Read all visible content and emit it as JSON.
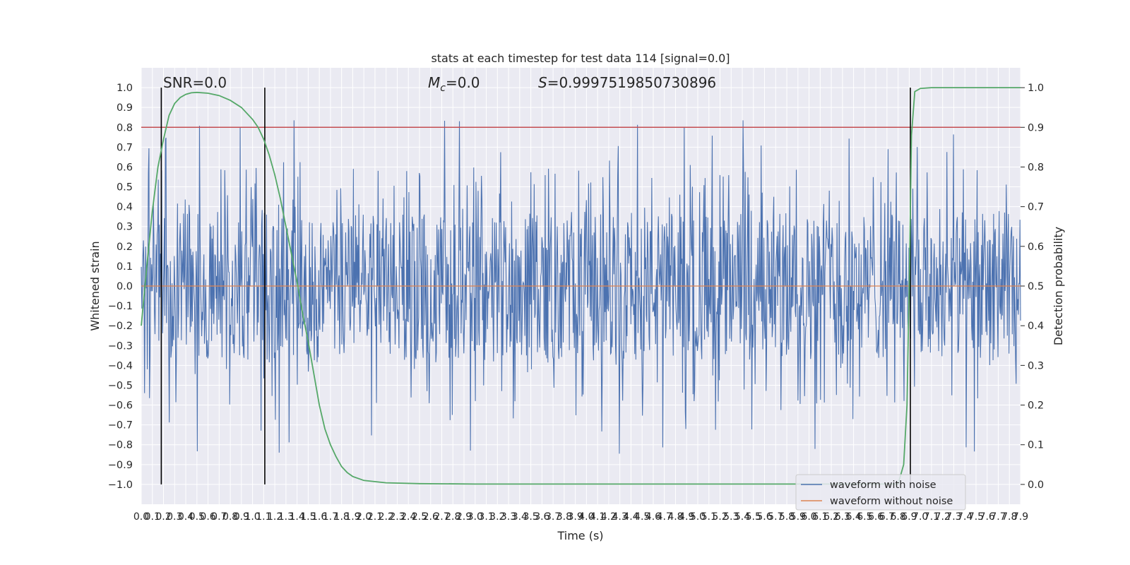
{
  "chart_data": {
    "type": "line",
    "title": "stats at each timestep for test data 114 [signal=0.0]",
    "xlabel": "Time (s)",
    "ylabel_left": "Whitened strain",
    "ylabel_right": "Detection probability",
    "xlim": [
      0.0,
      7.9
    ],
    "ylim_left": [
      -1.1,
      1.1
    ],
    "ylim_right": [
      -0.05,
      1.05
    ],
    "x_tick_step": 0.1,
    "y_left_ticks": [
      -1.0,
      -0.9,
      -0.8,
      -0.7,
      -0.6,
      -0.5,
      -0.4,
      -0.3,
      -0.2,
      -0.1,
      0.0,
      0.1,
      0.2,
      0.3,
      0.4,
      0.5,
      0.6,
      0.7,
      0.8,
      0.9,
      1.0
    ],
    "y_right_ticks": [
      0.0,
      0.1,
      0.2,
      0.3,
      0.4,
      0.5,
      0.6,
      0.7,
      0.8,
      0.9,
      1.0
    ],
    "grid": true,
    "legend_position": "lower-right",
    "annotations": {
      "snr": "SNR=0.0",
      "mc": "=0.0",
      "mc_symbol": "M",
      "mc_subscript": "c",
      "s": "=0.9997519850730896",
      "s_symbol": "S"
    },
    "threshold_line": {
      "y": 0.8,
      "color": "#c44e52"
    },
    "vertical_lines": [
      0.18,
      1.11,
      6.91
    ],
    "series": [
      {
        "name": "waveform with noise",
        "color": "#4c72b0",
        "axis": "left",
        "style": "dense noise, mostly within ±0.4 with spikes to ±1.0"
      },
      {
        "name": "waveform without noise",
        "color": "#dd8452",
        "axis": "left",
        "values": "flat at 0.0"
      },
      {
        "name": "",
        "color": "#55a868",
        "axis": "right",
        "x": [
          0.0,
          0.05,
          0.1,
          0.15,
          0.2,
          0.25,
          0.3,
          0.35,
          0.4,
          0.45,
          0.5,
          0.6,
          0.7,
          0.8,
          0.9,
          1.0,
          1.05,
          1.1,
          1.15,
          1.2,
          1.25,
          1.3,
          1.35,
          1.4,
          1.45,
          1.5,
          1.55,
          1.6,
          1.65,
          1.7,
          1.75,
          1.8,
          1.85,
          1.9,
          2.0,
          2.2,
          2.5,
          3.0,
          4.0,
          5.0,
          6.0,
          6.5,
          6.8,
          6.85,
          6.88,
          6.9,
          6.92,
          6.95,
          7.0,
          7.1,
          7.5,
          7.9
        ],
        "values": [
          0.4,
          0.55,
          0.69,
          0.8,
          0.87,
          0.93,
          0.96,
          0.975,
          0.983,
          0.987,
          0.988,
          0.986,
          0.98,
          0.968,
          0.95,
          0.92,
          0.9,
          0.87,
          0.83,
          0.78,
          0.72,
          0.65,
          0.58,
          0.51,
          0.43,
          0.36,
          0.28,
          0.2,
          0.14,
          0.1,
          0.07,
          0.045,
          0.03,
          0.02,
          0.01,
          0.004,
          0.002,
          0.001,
          0.001,
          0.001,
          0.001,
          0.001,
          0.001,
          0.05,
          0.2,
          0.5,
          0.88,
          0.99,
          0.998,
          1.0,
          1.0,
          1.0
        ]
      }
    ],
    "colors": {
      "plot_bg": "#eaeaf2",
      "grid": "#ffffff",
      "vline": "#000000"
    }
  }
}
